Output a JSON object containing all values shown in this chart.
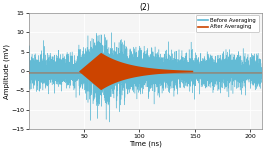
{
  "title": "(2)",
  "xlabel": "Time (ns)",
  "ylabel": "Amplitude (mV)",
  "xlim": [
    0,
    210
  ],
  "ylim": [
    -15,
    15
  ],
  "xticks": [
    50,
    100,
    150,
    200
  ],
  "yticks": [
    -15,
    -10,
    -5,
    0,
    5,
    10,
    15
  ],
  "noise_color": "#5bb8d4",
  "signal_color": "#cc4400",
  "legend_labels": [
    "Before Averaging",
    "After Averaging"
  ],
  "bg_color": "#f5f5f5",
  "signal_start": 45,
  "signal_peak": 65,
  "signal_end": 148,
  "peak_amp": 4.8,
  "noise_base": 2.0,
  "noise_signal_scale": 2.5
}
